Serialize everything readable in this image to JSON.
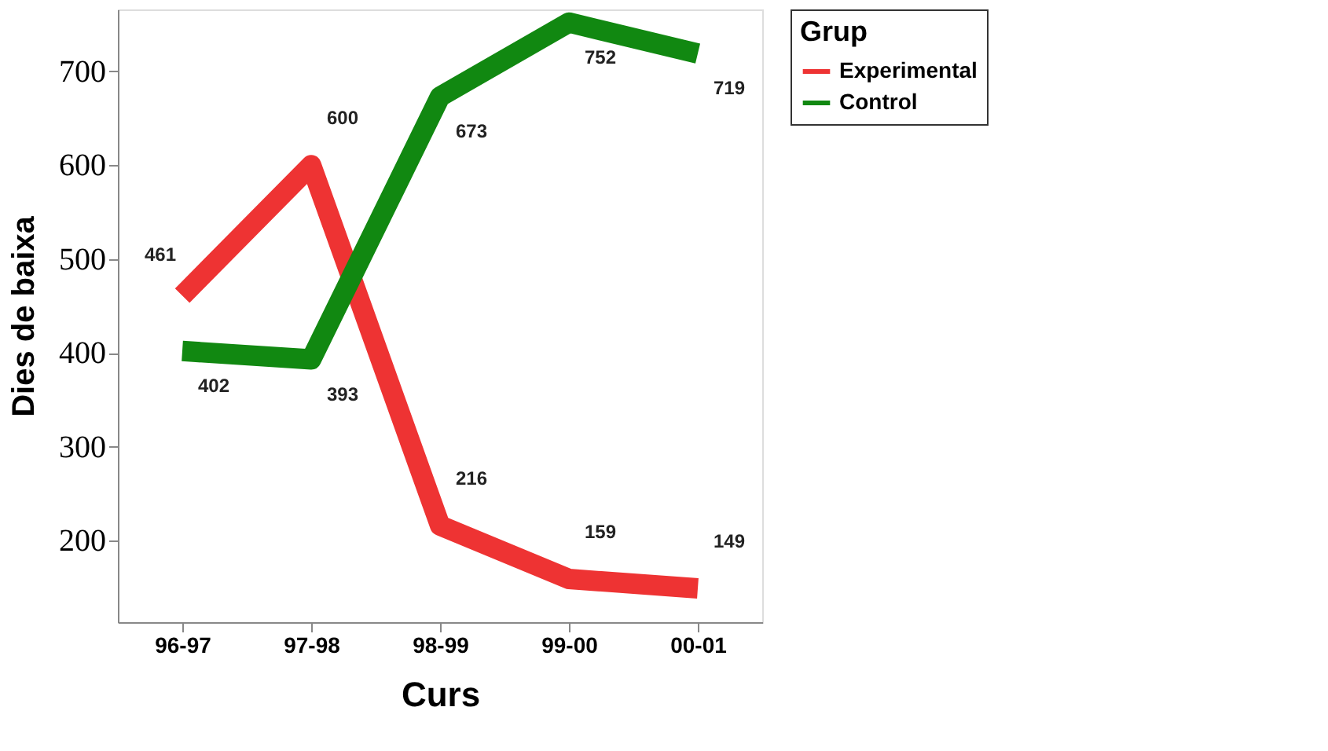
{
  "chart_data": {
    "type": "line",
    "xlabel": "Curs",
    "ylabel": "Dies de baixa",
    "legend_title": "Grup",
    "categories": [
      "96-97",
      "97-98",
      "98-99",
      "99-00",
      "00-01"
    ],
    "series": [
      {
        "name": "Experimental",
        "color": "#ee3333",
        "values": [
          461,
          600,
          216,
          159,
          149
        ]
      },
      {
        "name": "Control",
        "color": "#118811",
        "values": [
          402,
          393,
          673,
          752,
          719
        ]
      }
    ],
    "ylim": [
      113,
      766
    ],
    "yticks": [
      200,
      300,
      400,
      500,
      600,
      700
    ],
    "grid": false,
    "legend": "top right",
    "marker": "none",
    "line_style": "solid",
    "data_labels": true
  }
}
